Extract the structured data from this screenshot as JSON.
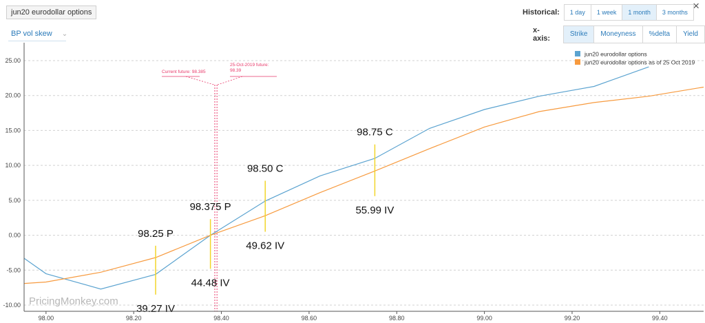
{
  "header": {
    "title": "jun20 eurodollar options",
    "close_label": "×",
    "view_select": "BP vol skew",
    "historical_label": "Historical:",
    "historical_options": [
      {
        "label": "1 day",
        "active": false
      },
      {
        "label": "1 week",
        "active": false
      },
      {
        "label": "1 month",
        "active": true
      },
      {
        "label": "3 months",
        "active": false
      }
    ],
    "xaxis_label": "x-axis:",
    "xaxis_options": [
      {
        "label": "Strike",
        "active": true
      },
      {
        "label": "Moneyness",
        "active": false
      },
      {
        "label": "%delta",
        "active": false
      },
      {
        "label": "Yield",
        "active": false
      }
    ]
  },
  "watermark": "PricingMonkey.com",
  "colors": {
    "current_series": "#5ba3d0",
    "historical_series": "#f79a3e",
    "marker_lines": "#e8396a",
    "annotation_ticks": "#f2d52a",
    "grid": "#d0d0d0"
  },
  "chart_data": {
    "type": "line",
    "xlim": [
      97.95,
      99.5
    ],
    "ylim": [
      -10.5,
      26.5
    ],
    "y_ticks": [
      -10,
      -5,
      0,
      5,
      10,
      15,
      20,
      25
    ],
    "y_tick_labels": [
      "-10.00",
      "-5.00",
      "0.00",
      "5.00",
      "10.00",
      "15.00",
      "20.00",
      "25.00"
    ],
    "x_ticks": [
      98.0,
      98.2,
      98.4,
      98.6,
      98.8,
      99.0,
      99.2,
      99.4
    ],
    "x_tick_labels": [
      "98.00",
      "98.20",
      "98.40",
      "98.60",
      "98.80",
      "99.00",
      "99.20",
      "99.40"
    ],
    "grid": "horizontal dashed",
    "legend_position": "top-right",
    "series": [
      {
        "name": "jun20 eurodollar options",
        "x": [
          97.95,
          98.0,
          98.125,
          98.25,
          98.375,
          98.5,
          98.625,
          98.75,
          98.875,
          99.0,
          99.125,
          99.25,
          99.375
        ],
        "values": [
          -3.3,
          -5.5,
          -7.7,
          -5.6,
          0.0,
          4.9,
          8.5,
          11.0,
          15.3,
          18.0,
          19.9,
          21.3,
          24.1
        ]
      },
      {
        "name": "jun20 eurodollar options as of 25 Oct 2019",
        "x": [
          97.95,
          98.0,
          98.125,
          98.25,
          98.375,
          98.5,
          98.625,
          98.75,
          98.875,
          99.0,
          99.125,
          99.25,
          99.375,
          99.5
        ],
        "values": [
          -6.9,
          -6.7,
          -5.3,
          -3.2,
          0.0,
          2.8,
          6.1,
          9.2,
          12.4,
          15.5,
          17.7,
          19.0,
          19.9,
          21.2
        ]
      }
    ],
    "markers": [
      {
        "label": "Current future: 98.385",
        "x": 98.385
      },
      {
        "label_lines": [
          "25-Oct-2019 future:",
          "98.39"
        ],
        "x": 98.39
      }
    ],
    "annotations": [
      {
        "x": 98.25,
        "option": "98.25 P",
        "iv": "39.27 IV",
        "tick_from": -8.5,
        "tick_to": -1.5
      },
      {
        "x": 98.375,
        "option": "98.375 P",
        "iv": "44.48 IV",
        "tick_from": -4.8,
        "tick_to": 2.3
      },
      {
        "x": 98.5,
        "option": "98.50 C",
        "iv": "49.62 IV",
        "tick_from": 0.5,
        "tick_to": 7.8
      },
      {
        "x": 98.75,
        "option": "98.75 C",
        "iv": "55.99 IV",
        "tick_from": 5.6,
        "tick_to": 13.0
      }
    ]
  }
}
